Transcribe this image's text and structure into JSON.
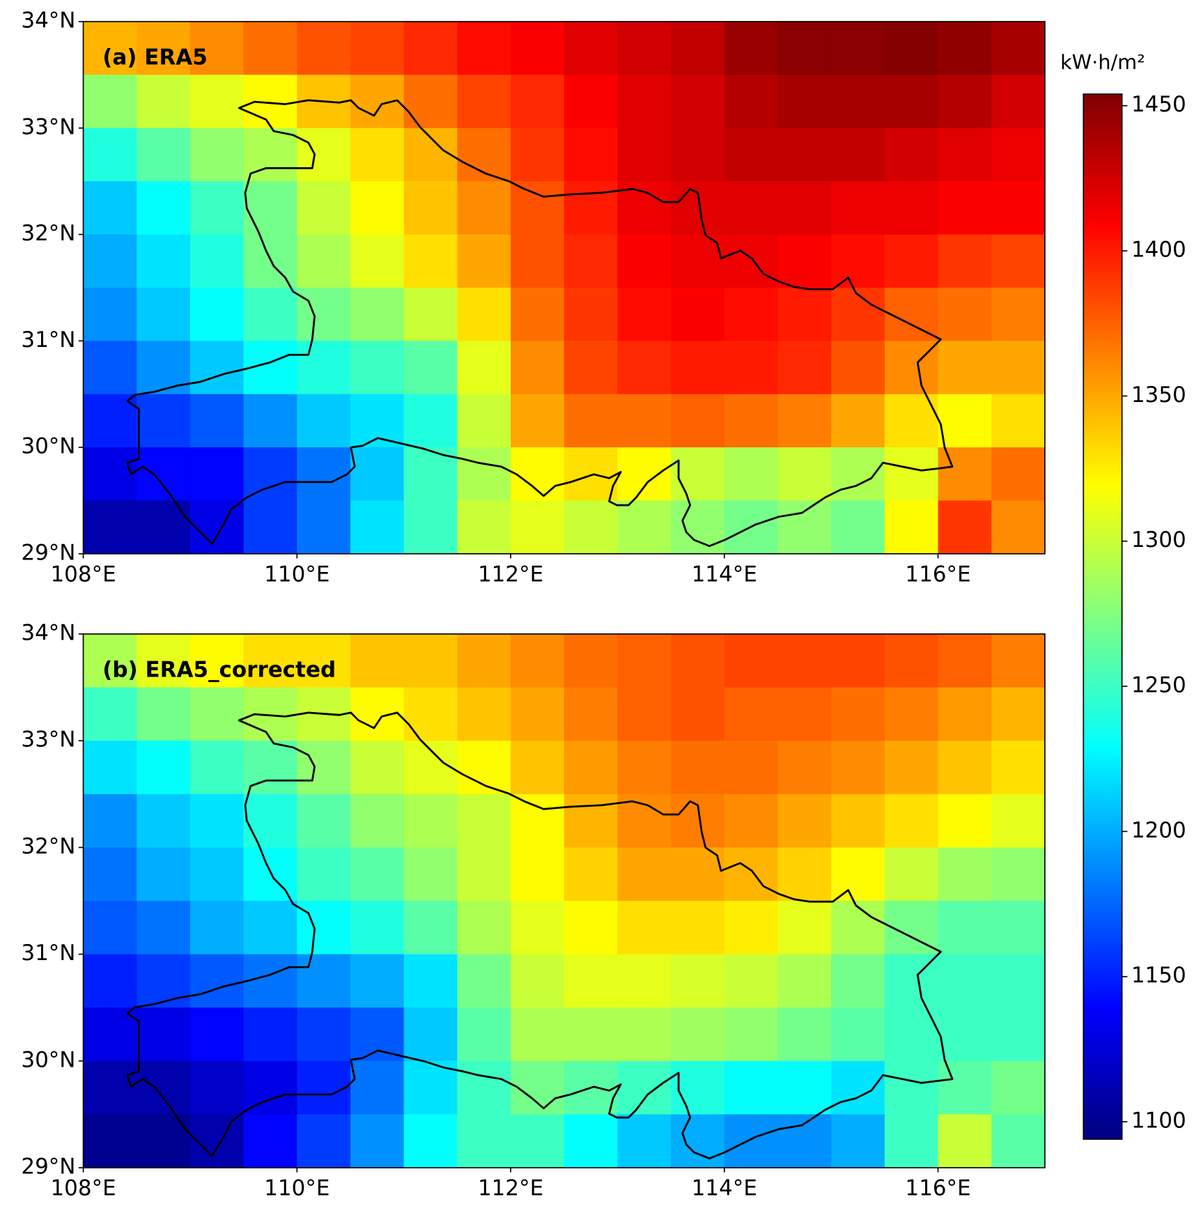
{
  "chart_data": [
    {
      "type": "heatmap",
      "title": "(a) ERA5",
      "xlim": [
        108,
        117
      ],
      "ylim": [
        29,
        34
      ],
      "xticks": [
        {
          "value": 108,
          "label": "108°E"
        },
        {
          "value": 110,
          "label": "110°E"
        },
        {
          "value": 112,
          "label": "112°E"
        },
        {
          "value": 114,
          "label": "114°E"
        },
        {
          "value": 116,
          "label": "116°E"
        }
      ],
      "yticks": [
        {
          "value": 29,
          "label": "29°N"
        },
        {
          "value": 30,
          "label": "30°N"
        },
        {
          "value": 31,
          "label": "31°N"
        },
        {
          "value": 32,
          "label": "32°N"
        },
        {
          "value": 33,
          "label": "33°N"
        },
        {
          "value": 34,
          "label": "34°N"
        }
      ],
      "values": [
        [
          1345,
          1350,
          1360,
          1370,
          1380,
          1385,
          1395,
          1405,
          1410,
          1420,
          1425,
          1430,
          1445,
          1450,
          1450,
          1452,
          1448,
          1440
        ],
        [
          1280,
          1300,
          1310,
          1320,
          1340,
          1350,
          1370,
          1385,
          1395,
          1410,
          1420,
          1425,
          1435,
          1440,
          1440,
          1440,
          1435,
          1425
        ],
        [
          1240,
          1260,
          1280,
          1290,
          1310,
          1330,
          1345,
          1370,
          1390,
          1405,
          1420,
          1425,
          1430,
          1430,
          1430,
          1425,
          1420,
          1415
        ],
        [
          1210,
          1230,
          1250,
          1270,
          1300,
          1320,
          1340,
          1360,
          1380,
          1400,
          1415,
          1420,
          1420,
          1420,
          1415,
          1415,
          1410,
          1410
        ],
        [
          1200,
          1220,
          1240,
          1270,
          1290,
          1310,
          1330,
          1350,
          1380,
          1395,
          1410,
          1415,
          1415,
          1410,
          1405,
          1400,
          1390,
          1385
        ],
        [
          1190,
          1210,
          1230,
          1250,
          1270,
          1280,
          1300,
          1330,
          1370,
          1390,
          1405,
          1410,
          1405,
          1400,
          1390,
          1375,
          1370,
          1365
        ],
        [
          1170,
          1190,
          1210,
          1230,
          1240,
          1250,
          1260,
          1310,
          1360,
          1385,
          1395,
          1400,
          1400,
          1395,
          1380,
          1360,
          1350,
          1350
        ],
        [
          1150,
          1160,
          1170,
          1190,
          1210,
          1220,
          1240,
          1300,
          1350,
          1370,
          1370,
          1375,
          1370,
          1365,
          1350,
          1330,
          1320,
          1330
        ],
        [
          1130,
          1140,
          1140,
          1160,
          1180,
          1210,
          1250,
          1290,
          1320,
          1330,
          1320,
          1300,
          1290,
          1300,
          1290,
          1310,
          1360,
          1370
        ],
        [
          1110,
          1110,
          1130,
          1160,
          1180,
          1220,
          1250,
          1300,
          1310,
          1300,
          1290,
          1280,
          1270,
          1280,
          1270,
          1320,
          1390,
          1360
        ]
      ]
    },
    {
      "type": "heatmap",
      "title": "(b) ERA5_corrected",
      "xlim": [
        108,
        117
      ],
      "ylim": [
        29,
        34
      ],
      "xticks": [
        {
          "value": 108,
          "label": "108°E"
        },
        {
          "value": 110,
          "label": "110°E"
        },
        {
          "value": 112,
          "label": "112°E"
        },
        {
          "value": 114,
          "label": "114°E"
        },
        {
          "value": 116,
          "label": "116°E"
        }
      ],
      "yticks": [
        {
          "value": 29,
          "label": "29°N"
        },
        {
          "value": 30,
          "label": "30°N"
        },
        {
          "value": 31,
          "label": "31°N"
        },
        {
          "value": 32,
          "label": "32°N"
        },
        {
          "value": 33,
          "label": "33°N"
        },
        {
          "value": 34,
          "label": "34°N"
        }
      ],
      "values": [
        [
          1290,
          1310,
          1320,
          1330,
          1330,
          1340,
          1340,
          1350,
          1360,
          1370,
          1375,
          1380,
          1385,
          1385,
          1385,
          1380,
          1375,
          1365
        ],
        [
          1250,
          1270,
          1280,
          1290,
          1300,
          1320,
          1330,
          1340,
          1350,
          1365,
          1375,
          1380,
          1375,
          1375,
          1370,
          1365,
          1355,
          1345
        ],
        [
          1220,
          1230,
          1250,
          1260,
          1280,
          1300,
          1310,
          1320,
          1340,
          1355,
          1365,
          1370,
          1370,
          1365,
          1360,
          1350,
          1340,
          1330
        ],
        [
          1190,
          1210,
          1220,
          1240,
          1260,
          1280,
          1290,
          1300,
          1320,
          1345,
          1360,
          1365,
          1360,
          1350,
          1340,
          1330,
          1320,
          1310
        ],
        [
          1180,
          1200,
          1210,
          1230,
          1250,
          1260,
          1280,
          1300,
          1320,
          1335,
          1350,
          1350,
          1345,
          1335,
          1320,
          1300,
          1285,
          1280
        ],
        [
          1170,
          1180,
          1200,
          1210,
          1230,
          1240,
          1260,
          1290,
          1310,
          1320,
          1330,
          1330,
          1325,
          1310,
          1290,
          1270,
          1260,
          1260
        ],
        [
          1150,
          1160,
          1170,
          1180,
          1190,
          1200,
          1220,
          1270,
          1300,
          1310,
          1310,
          1305,
          1300,
          1290,
          1270,
          1250,
          1250,
          1250
        ],
        [
          1130,
          1130,
          1140,
          1150,
          1160,
          1170,
          1210,
          1260,
          1290,
          1290,
          1290,
          1285,
          1280,
          1270,
          1260,
          1250,
          1250,
          1250
        ],
        [
          1110,
          1110,
          1120,
          1130,
          1150,
          1180,
          1220,
          1250,
          1270,
          1260,
          1250,
          1240,
          1230,
          1230,
          1220,
          1250,
          1260,
          1270
        ],
        [
          1100,
          1100,
          1110,
          1140,
          1160,
          1190,
          1230,
          1250,
          1250,
          1230,
          1210,
          1200,
          1190,
          1190,
          1200,
          1250,
          1300,
          1260
        ]
      ]
    }
  ],
  "colorbar": {
    "label": "kW·h/m²",
    "colormap": "jet",
    "lim": [
      1094,
      1454
    ],
    "ticks": [
      1100,
      1150,
      1200,
      1250,
      1300,
      1350,
      1400,
      1450
    ]
  }
}
